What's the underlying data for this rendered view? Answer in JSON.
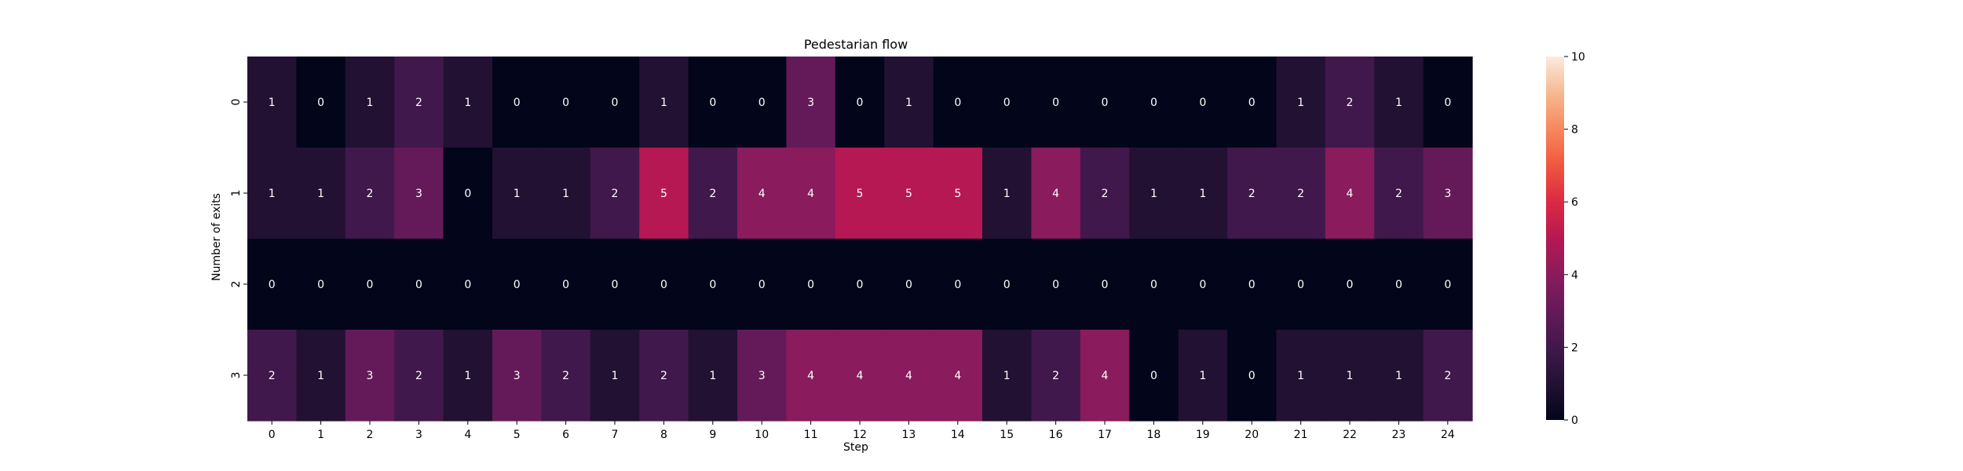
{
  "chart_data": {
    "type": "heatmap",
    "title": "Pedestarian flow",
    "xlabel": "Step",
    "ylabel": "Number of exits",
    "x_categories": [
      "0",
      "1",
      "2",
      "3",
      "4",
      "5",
      "6",
      "7",
      "8",
      "9",
      "10",
      "11",
      "12",
      "13",
      "14",
      "15",
      "16",
      "17",
      "18",
      "19",
      "20",
      "21",
      "22",
      "23",
      "24"
    ],
    "y_categories": [
      "0",
      "1",
      "2",
      "3"
    ],
    "values": [
      [
        1,
        0,
        1,
        2,
        1,
        0,
        0,
        0,
        1,
        0,
        0,
        3,
        0,
        1,
        0,
        0,
        0,
        0,
        0,
        0,
        0,
        1,
        2,
        1,
        0
      ],
      [
        1,
        1,
        2,
        3,
        0,
        1,
        1,
        2,
        5,
        2,
        4,
        4,
        5,
        5,
        5,
        1,
        4,
        2,
        1,
        1,
        2,
        2,
        4,
        2,
        3
      ],
      [
        0,
        0,
        0,
        0,
        0,
        0,
        0,
        0,
        0,
        0,
        0,
        0,
        0,
        0,
        0,
        0,
        0,
        0,
        0,
        0,
        0,
        0,
        0,
        0,
        0
      ],
      [
        2,
        1,
        3,
        2,
        1,
        3,
        2,
        1,
        2,
        1,
        3,
        4,
        4,
        4,
        4,
        1,
        2,
        4,
        0,
        1,
        0,
        1,
        1,
        1,
        2
      ]
    ],
    "colorbar": {
      "min": 0,
      "max": 10,
      "ticks": [
        "0",
        "2",
        "4",
        "6",
        "8",
        "10"
      ],
      "colormap": "rocket"
    },
    "annotation_color": "#ffffff",
    "grid": false
  }
}
